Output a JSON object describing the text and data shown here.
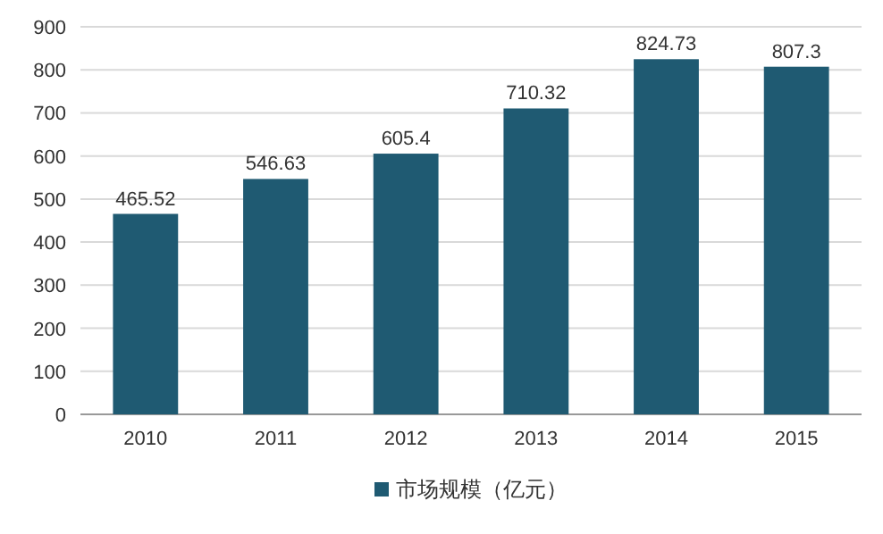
{
  "chart_data": {
    "type": "bar",
    "categories": [
      "2010",
      "2011",
      "2012",
      "2013",
      "2014",
      "2015"
    ],
    "series": [
      {
        "name": "市场规模（亿元）",
        "color": "#1f5a72",
        "values": [
          465.52,
          546.63,
          605.4,
          710.32,
          824.73,
          807.3
        ]
      }
    ],
    "ylim": [
      0,
      900
    ],
    "yticks": [
      0,
      100,
      200,
      300,
      400,
      500,
      600,
      700,
      800,
      900
    ],
    "grid": "y",
    "data_labels": true,
    "legend": "bottom"
  }
}
